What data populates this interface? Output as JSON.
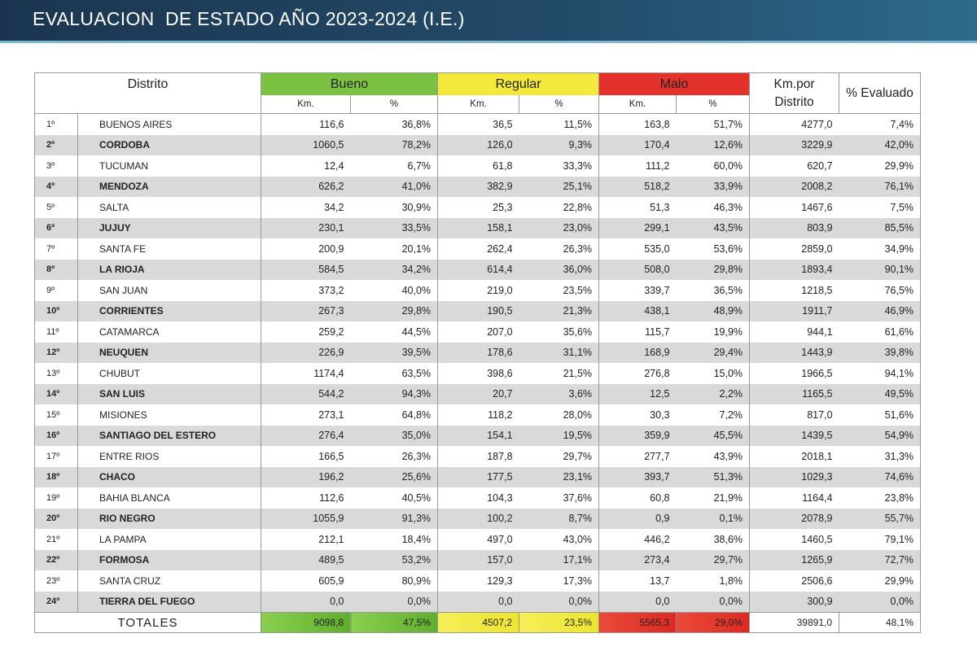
{
  "header": {
    "title": "EVALUACION  DE ESTADO AÑO 2023-2024 (I.E.)"
  },
  "table": {
    "group_headers": [
      "Distrito",
      "Bueno",
      "Regular",
      "Malo",
      "Km.por Distrito",
      "% Evaluado"
    ],
    "subheaders": [
      "Km.",
      "%",
      "Km.",
      "%",
      "Km.",
      "%"
    ],
    "rows": [
      [
        "1º",
        "BUENOS AIRES",
        "116,6",
        "36,8%",
        "36,5",
        "11,5%",
        "163,8",
        "51,7%",
        "4277,0",
        "7,4%"
      ],
      [
        "2º",
        "CORDOBA",
        "1060,5",
        "78,2%",
        "126,0",
        "9,3%",
        "170,4",
        "12,6%",
        "3229,9",
        "42,0%"
      ],
      [
        "3º",
        "TUCUMAN",
        "12,4",
        "6,7%",
        "61,8",
        "33,3%",
        "111,2",
        "60,0%",
        "620,7",
        "29,9%"
      ],
      [
        "4º",
        "MENDOZA",
        "626,2",
        "41,0%",
        "382,9",
        "25,1%",
        "518,2",
        "33,9%",
        "2008,2",
        "76,1%"
      ],
      [
        "5º",
        "SALTA",
        "34,2",
        "30,9%",
        "25,3",
        "22,8%",
        "51,3",
        "46,3%",
        "1467,6",
        "7,5%"
      ],
      [
        "6º",
        "JUJUY",
        "230,1",
        "33,5%",
        "158,1",
        "23,0%",
        "299,1",
        "43,5%",
        "803,9",
        "85,5%"
      ],
      [
        "7º",
        "SANTA FE",
        "200,9",
        "20,1%",
        "262,4",
        "26,3%",
        "535,0",
        "53,6%",
        "2859,0",
        "34,9%"
      ],
      [
        "8º",
        "LA RIOJA",
        "584,5",
        "34,2%",
        "614,4",
        "36,0%",
        "508,0",
        "29,8%",
        "1893,4",
        "90,1%"
      ],
      [
        "9º",
        "SAN JUAN",
        "373,2",
        "40,0%",
        "219,0",
        "23,5%",
        "339,7",
        "36,5%",
        "1218,5",
        "76,5%"
      ],
      [
        "10º",
        "CORRIENTES",
        "267,3",
        "29,8%",
        "190,5",
        "21,3%",
        "438,1",
        "48,9%",
        "1911,7",
        "46,9%"
      ],
      [
        "11º",
        "CATAMARCA",
        "259,2",
        "44,5%",
        "207,0",
        "35,6%",
        "115,7",
        "19,9%",
        "944,1",
        "61,6%"
      ],
      [
        "12º",
        "NEUQUEN",
        "226,9",
        "39,5%",
        "178,6",
        "31,1%",
        "168,9",
        "29,4%",
        "1443,9",
        "39,8%"
      ],
      [
        "13º",
        "CHUBUT",
        "1174,4",
        "63,5%",
        "398,6",
        "21,5%",
        "276,8",
        "15,0%",
        "1966,5",
        "94,1%"
      ],
      [
        "14º",
        "SAN LUIS",
        "544,2",
        "94,3%",
        "20,7",
        "3,6%",
        "12,5",
        "2,2%",
        "1165,5",
        "49,5%"
      ],
      [
        "15º",
        "MISIONES",
        "273,1",
        "64,8%",
        "118,2",
        "28,0%",
        "30,3",
        "7,2%",
        "817,0",
        "51,6%"
      ],
      [
        "16º",
        "SANTIAGO DEL ESTERO",
        "276,4",
        "35,0%",
        "154,1",
        "19,5%",
        "359,9",
        "45,5%",
        "1439,5",
        "54,9%"
      ],
      [
        "17º",
        "ENTRE RIOS",
        "166,5",
        "26,3%",
        "187,8",
        "29,7%",
        "277,7",
        "43,9%",
        "2018,1",
        "31,3%"
      ],
      [
        "18º",
        "CHACO",
        "196,2",
        "25,6%",
        "177,5",
        "23,1%",
        "393,7",
        "51,3%",
        "1029,3",
        "74,6%"
      ],
      [
        "19º",
        "BAHIA BLANCA",
        "112,6",
        "40,5%",
        "104,3",
        "37,6%",
        "60,8",
        "21,9%",
        "1164,4",
        "23,8%"
      ],
      [
        "20º",
        "RIO NEGRO",
        "1055,9",
        "91,3%",
        "100,2",
        "8,7%",
        "0,9",
        "0,1%",
        "2078,9",
        "55,7%"
      ],
      [
        "21º",
        "LA PAMPA",
        "212,1",
        "18,4%",
        "497,0",
        "43,0%",
        "446,2",
        "38,6%",
        "1460,5",
        "79,1%"
      ],
      [
        "22º",
        "FORMOSA",
        "489,5",
        "53,2%",
        "157,0",
        "17,1%",
        "273,4",
        "29,7%",
        "1265,9",
        "72,7%"
      ],
      [
        "23º",
        "SANTA CRUZ",
        "605,9",
        "80,9%",
        "129,3",
        "17,3%",
        "13,7",
        "1,8%",
        "2506,6",
        "29,9%"
      ],
      [
        "24º",
        "TIERRA DEL FUEGO",
        "0,0",
        "0,0%",
        "0,0",
        "0,0%",
        "0,0",
        "0,0%",
        "300,9",
        "0,0%"
      ]
    ],
    "totals": {
      "label": "TOTALES",
      "values": [
        "9098,8",
        "47,5%",
        "4507,2",
        "23,5%",
        "5565,3",
        "29,0%",
        "39891,0",
        "48,1%"
      ]
    }
  }
}
